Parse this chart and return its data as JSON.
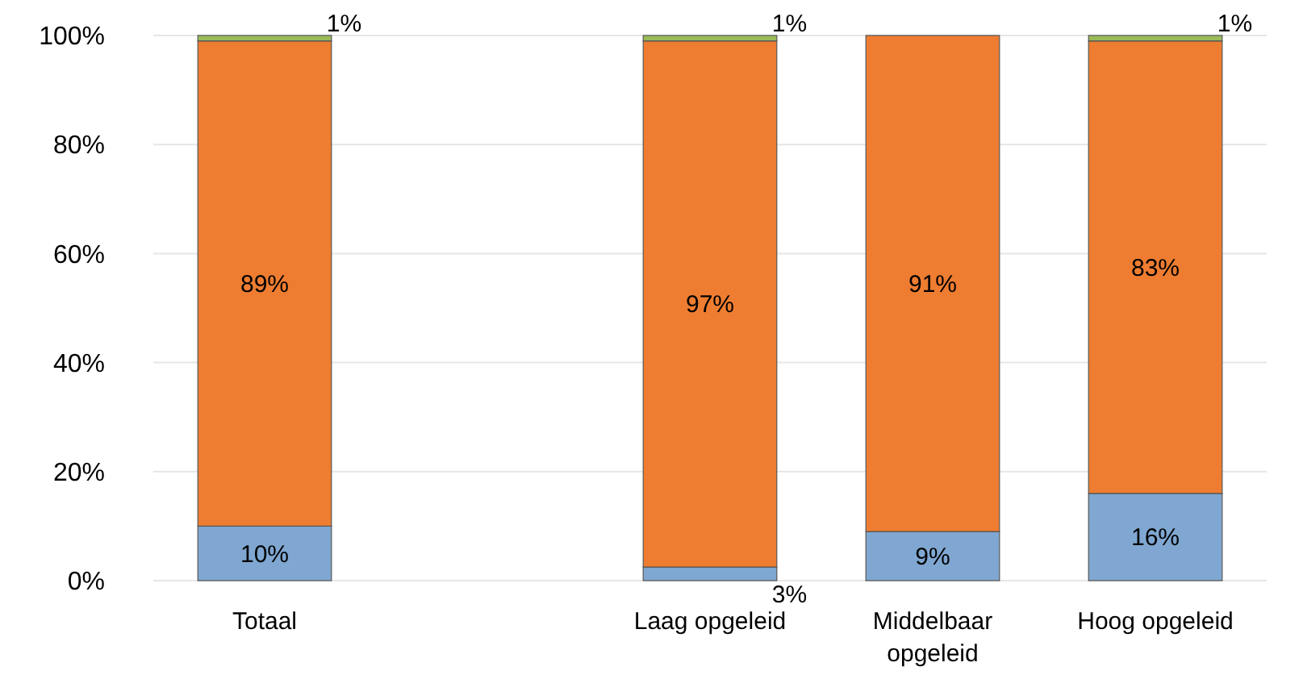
{
  "chart_data": {
    "type": "bar",
    "stacked": true,
    "categories": [
      "Totaal",
      null,
      "Laag opgeleid",
      "Middelbaar opgeleid",
      "Hoog opgeleid"
    ],
    "series": [
      {
        "color": "#7fa7d1",
        "values": [
          10,
          null,
          2.5,
          9,
          16
        ],
        "value_labels": [
          "10%",
          null,
          "3%",
          "9%",
          "16%"
        ]
      },
      {
        "color": "#ee7d31",
        "values": [
          89,
          null,
          96.5,
          91,
          83
        ],
        "value_labels": [
          "89%",
          null,
          "97%",
          "91%",
          "83%"
        ]
      },
      {
        "color": "#9bbb59",
        "values": [
          1,
          null,
          1,
          null,
          1
        ],
        "value_labels": [
          "1%",
          null,
          "1%",
          null,
          "1%"
        ]
      }
    ],
    "ylim": [
      0,
      100
    ],
    "yticks": [
      {
        "value": 0,
        "label": "0%"
      },
      {
        "value": 20,
        "label": "20%"
      },
      {
        "value": 40,
        "label": "40%"
      },
      {
        "value": 60,
        "label": "60%"
      },
      {
        "value": 80,
        "label": "80%"
      },
      {
        "value": 100,
        "label": "100%"
      }
    ],
    "grid": "y"
  }
}
